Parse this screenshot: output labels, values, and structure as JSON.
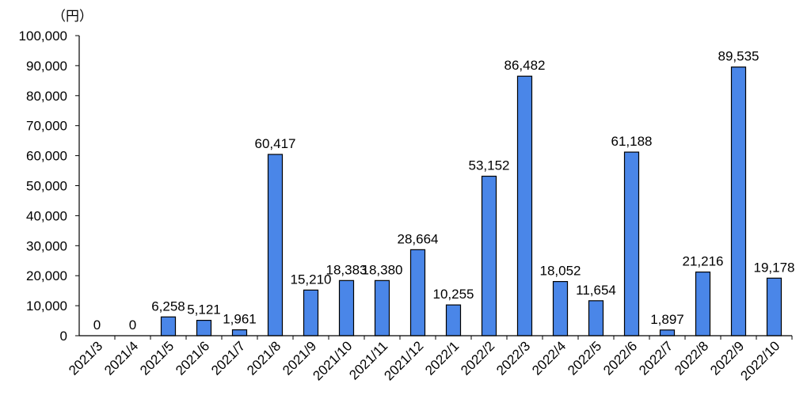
{
  "chart_data": {
    "type": "bar",
    "unit_label": "（円）",
    "categories": [
      "2021/3",
      "2021/4",
      "2021/5",
      "2021/6",
      "2021/7",
      "2021/8",
      "2021/9",
      "2021/10",
      "2021/11",
      "2021/12",
      "2022/1",
      "2022/2",
      "2022/3",
      "2022/4",
      "2022/5",
      "2022/6",
      "2022/7",
      "2022/8",
      "2022/9",
      "2022/10"
    ],
    "values": [
      0,
      0,
      6258,
      5121,
      1961,
      60417,
      15210,
      18383,
      18380,
      28664,
      10255,
      53152,
      86482,
      18052,
      11654,
      61188,
      1897,
      21216,
      89535,
      19178
    ],
    "value_labels": [
      "0",
      "0",
      "6,258",
      "5,121",
      "1,961",
      "60,417",
      "15,210",
      "18,383",
      "18,380",
      "28,664",
      "10,255",
      "53,152",
      "86,482",
      "18,052",
      "11,654",
      "61,188",
      "1,897",
      "21,216",
      "89,535",
      "19,178"
    ],
    "ylim": [
      0,
      100000
    ],
    "yticks": [
      0,
      10000,
      20000,
      30000,
      40000,
      50000,
      60000,
      70000,
      80000,
      90000,
      100000
    ],
    "ytick_labels": [
      "0",
      "10,000",
      "20,000",
      "30,000",
      "40,000",
      "50,000",
      "60,000",
      "70,000",
      "80,000",
      "90,000",
      "100,000"
    ],
    "grid": false,
    "bar_color": "#4a86e8",
    "bar_edge_color": "#000000"
  }
}
